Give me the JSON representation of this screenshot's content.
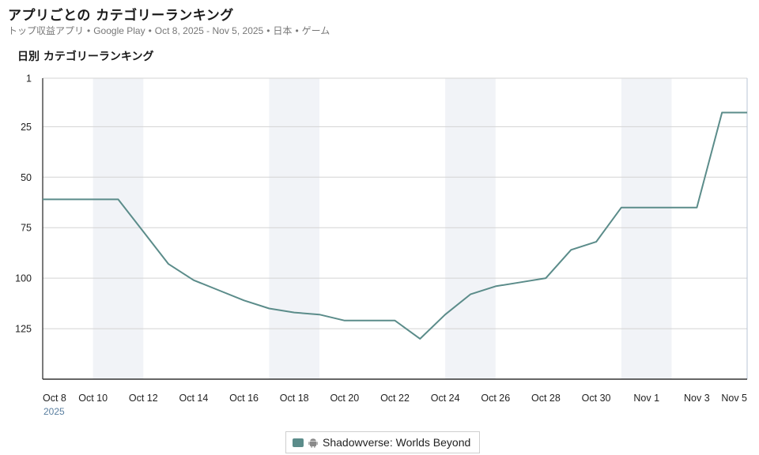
{
  "header": {
    "title": "アプリごとの カテゴリーランキング",
    "subtitle_parts": [
      "トップ収益アプリ",
      "Google Play",
      "Oct 8, 2025 - Nov 5, 2025",
      "日本",
      "ゲーム"
    ]
  },
  "chart_data": {
    "type": "line",
    "title": "日別 カテゴリーランキング",
    "xlabel": "",
    "ylabel": "",
    "y_inverted": true,
    "ylim": [
      1,
      150
    ],
    "y_ticks": [
      1,
      25,
      50,
      75,
      100,
      125
    ],
    "x_ticks": [
      "Oct 8",
      "Oct 10",
      "Oct 12",
      "Oct 14",
      "Oct 16",
      "Oct 18",
      "Oct 20",
      "Oct 22",
      "Oct 24",
      "Oct 26",
      "Oct 28",
      "Oct 30",
      "Nov 1",
      "Nov 3",
      "Nov 5"
    ],
    "x_year_label": "2025",
    "x": [
      "Oct 8",
      "Oct 9",
      "Oct 10",
      "Oct 11",
      "Oct 12",
      "Oct 13",
      "Oct 14",
      "Oct 15",
      "Oct 16",
      "Oct 17",
      "Oct 18",
      "Oct 19",
      "Oct 20",
      "Oct 21",
      "Oct 22",
      "Oct 23",
      "Oct 24",
      "Oct 25",
      "Oct 26",
      "Oct 27",
      "Oct 28",
      "Oct 29",
      "Oct 30",
      "Oct 31",
      "Nov 1",
      "Nov 2",
      "Nov 3",
      "Nov 4",
      "Nov 5"
    ],
    "series": [
      {
        "name": "Shadowverse: Worlds Beyond",
        "color": "#5b8c8a",
        "platform_icon": "android-icon",
        "values": [
          61,
          61,
          61,
          61,
          77,
          93,
          101,
          106,
          111,
          115,
          117,
          118,
          121,
          121,
          121,
          130,
          118,
          108,
          104,
          102,
          100,
          86,
          82,
          65,
          65,
          65,
          65,
          18,
          18
        ]
      }
    ],
    "weekend_bands": [
      [
        "Oct 10",
        "Oct 12"
      ],
      [
        "Oct 17",
        "Oct 19"
      ],
      [
        "Oct 24",
        "Oct 26"
      ],
      [
        "Oct 31",
        "Nov 2"
      ]
    ],
    "grid": true,
    "legend_position": "bottom-center"
  }
}
